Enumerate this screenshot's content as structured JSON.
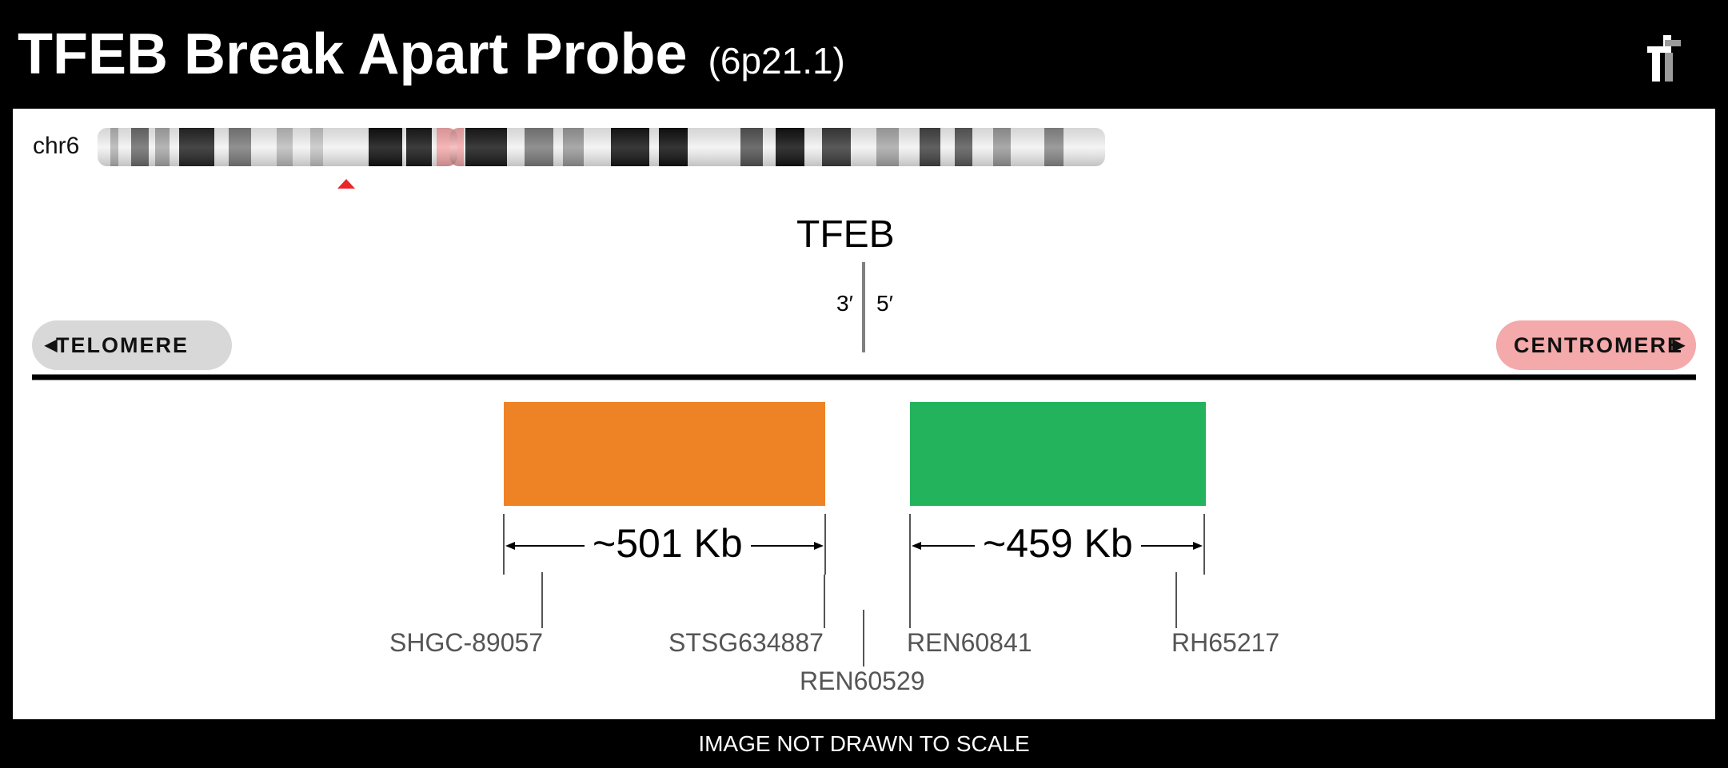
{
  "header": {
    "title": "TFEB Break Apart Probe",
    "locus": "(6p21.1)",
    "logo_icon": "company-logo-icon"
  },
  "chromosome": {
    "label": "chr6"
  },
  "gene": {
    "name": "TFEB",
    "strand_left": "3′",
    "strand_right": "5′"
  },
  "direction": {
    "telomere": "TELOMERE",
    "centromere": "CENTROMERE"
  },
  "probes": [
    {
      "color": "#ee8325",
      "size": "~501 Kb",
      "color_name": "orange"
    },
    {
      "color": "#24b35d",
      "size": "~459 Kb",
      "color_name": "green"
    }
  ],
  "markers": {
    "m1": "SHGC-89057",
    "m2": "STSG634887",
    "m3": "REN60529",
    "m4": "REN60841",
    "m5": "RH65217"
  },
  "footer": {
    "note": "IMAGE NOT DRAWN TO SCALE"
  },
  "colors": {
    "background": "#000000",
    "panel": "#ffffff",
    "centromere": "#f4a9aa",
    "telomere_pill": "#d8d8d8",
    "locus_marker": "#e8262b"
  }
}
